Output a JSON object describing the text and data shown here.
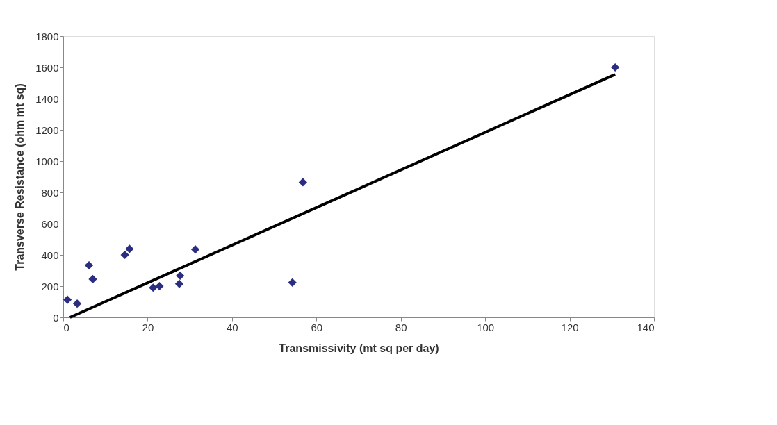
{
  "chart_data": {
    "type": "scatter",
    "xlabel": "Transmissivity (mt sq per day)",
    "ylabel": "Transverse Resistance (ohm mt sq)",
    "xlim": [
      0,
      140
    ],
    "xticks": [
      0,
      20,
      40,
      60,
      80,
      100,
      120,
      140
    ],
    "ylim": [
      0,
      1800
    ],
    "yticks": [
      0,
      200,
      400,
      600,
      800,
      1000,
      1200,
      1400,
      1600,
      1800
    ],
    "grid": false,
    "series": [
      {
        "marker": "diamond",
        "color": "#2b2e80",
        "x": [
          1.0,
          3.3,
          6.1,
          7.0,
          14.6,
          15.7,
          21.3,
          22.8,
          27.5,
          27.7,
          31.3,
          54.3,
          56.8,
          130.8
        ],
        "values": [
          113,
          88,
          333,
          245,
          400,
          438,
          190,
          200,
          215,
          267,
          435,
          223,
          865,
          1600
        ]
      },
      {
        "type": "line",
        "color": "#000000",
        "x": [
          1.6,
          130.8
        ],
        "values": [
          0,
          1555
        ]
      }
    ]
  }
}
